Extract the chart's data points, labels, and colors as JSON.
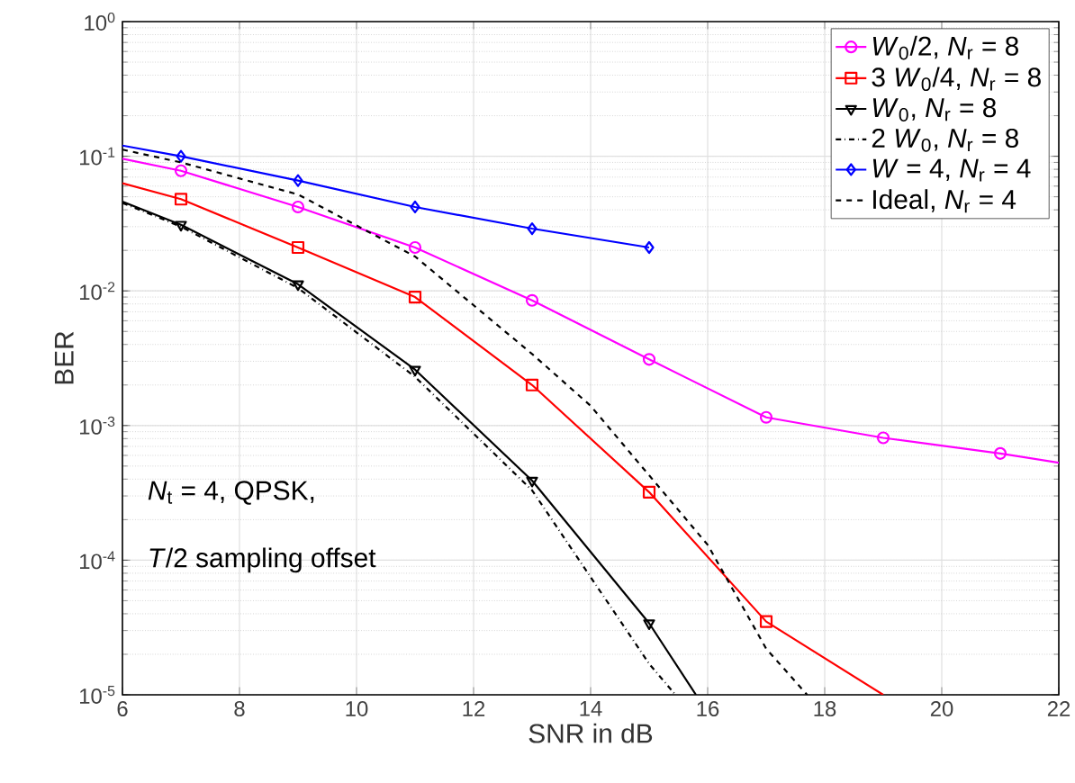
{
  "chart_data": {
    "type": "line",
    "xlabel": "SNR in dB",
    "ylabel": "BER",
    "log": "y",
    "grid": true,
    "legend": "top right",
    "xlim": [
      6,
      22
    ],
    "xticks": [
      6,
      8,
      10,
      12,
      14,
      16,
      18,
      20,
      22
    ],
    "ylim": [
      1e-05,
      1
    ],
    "yticks": [
      {
        "value": 1e-05,
        "label": "10$^{-5}$"
      },
      {
        "value": 0.0001,
        "label": "10$^{-4}$"
      },
      {
        "value": 0.001,
        "label": "10$^{-3}$"
      },
      {
        "value": 0.01,
        "label": "10$^{-2}$"
      },
      {
        "value": 0.1,
        "label": "10$^{-1}$"
      },
      {
        "value": 1,
        "label": "10$^{0}$"
      }
    ],
    "annotations": [
      "*N*$_{t}$ = 4, QPSK,",
      "*T*/2 sampling offset"
    ],
    "series": [
      {
        "name": "*W*$_{0}$/2, *N*$_{r}$ = 8",
        "color": "#ff00ff",
        "marker": "circle",
        "line_style": "solid",
        "x": [
          6,
          7,
          9,
          11,
          13,
          15,
          17,
          19,
          21,
          22
        ],
        "values": [
          0.096,
          0.078,
          0.042,
          0.021,
          0.0085,
          0.0031,
          0.00115,
          0.00081,
          0.00062,
          0.00053
        ]
      },
      {
        "name": "3 *W*$_{0}$/4, *N*$_{r}$ = 8",
        "color": "#ff0000",
        "marker": "square",
        "line_style": "solid",
        "x": [
          6,
          7,
          9,
          11,
          13,
          15,
          17,
          19
        ],
        "values": [
          0.063,
          0.048,
          0.021,
          0.009,
          0.002,
          0.00032,
          3.5e-05,
          1e-05
        ]
      },
      {
        "name": "*W*$_{0}$, *N*$_{r}$ = 8",
        "color": "#000000",
        "marker": "triangle",
        "line_style": "solid",
        "x": [
          6,
          7,
          9,
          11,
          13,
          15,
          15.8
        ],
        "values": [
          0.046,
          0.031,
          0.0112,
          0.0026,
          0.00039,
          3.4e-05,
          1e-05
        ]
      },
      {
        "name": "2 *W*$_{0}$, *N*$_{r}$ = 8",
        "color": "#000000",
        "marker": "none",
        "line_style": "dashdot",
        "x": [
          6,
          7,
          9,
          11,
          13,
          15,
          15.45
        ],
        "values": [
          0.045,
          0.03,
          0.0105,
          0.0023,
          0.00033,
          1.7e-05,
          1e-05
        ]
      },
      {
        "name": "*W* = 4, *N*$_{r}$ = 4",
        "color": "#0000ff",
        "marker": "diamond",
        "line_style": "solid",
        "x": [
          6,
          7,
          9,
          11,
          13,
          15
        ],
        "values": [
          0.12,
          0.1,
          0.066,
          0.042,
          0.029,
          0.021
        ]
      },
      {
        "name": "Ideal, *N*$_{r}$ = 4",
        "color": "#000000",
        "marker": "none",
        "line_style": "dashed",
        "x": [
          6,
          7,
          9,
          11,
          13,
          14,
          16,
          17,
          17.7
        ],
        "values": [
          0.112,
          0.09,
          0.052,
          0.018,
          0.0034,
          0.0014,
          0.00013,
          2.2e-05,
          1e-05
        ]
      }
    ]
  }
}
